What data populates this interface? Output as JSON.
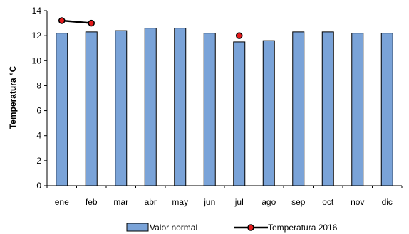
{
  "chart_data": {
    "type": "bar",
    "categories": [
      "ene",
      "feb",
      "mar",
      "abr",
      "may",
      "jun",
      "jul",
      "ago",
      "sep",
      "oct",
      "nov",
      "dic"
    ],
    "series": [
      {
        "name": "Valor normal",
        "kind": "bar",
        "color": "#7aa3d8",
        "values": [
          12.2,
          12.3,
          12.4,
          12.6,
          12.6,
          12.2,
          11.5,
          11.6,
          12.3,
          12.3,
          12.2,
          12.2
        ]
      },
      {
        "name": "Temperatura  2016",
        "kind": "line",
        "color": "#000000",
        "marker_color": "#e41a1c",
        "values": [
          13.2,
          13.0,
          null,
          null,
          null,
          null,
          12.0,
          null,
          null,
          null,
          null,
          null
        ]
      }
    ],
    "xlabel": "",
    "ylabel": "Temperatura °C",
    "ylim": [
      0,
      14
    ],
    "yticks": [
      "0",
      "2",
      "4",
      "6",
      "8",
      "10",
      "12",
      "14"
    ],
    "grid": false,
    "legend_position": "bottom"
  }
}
